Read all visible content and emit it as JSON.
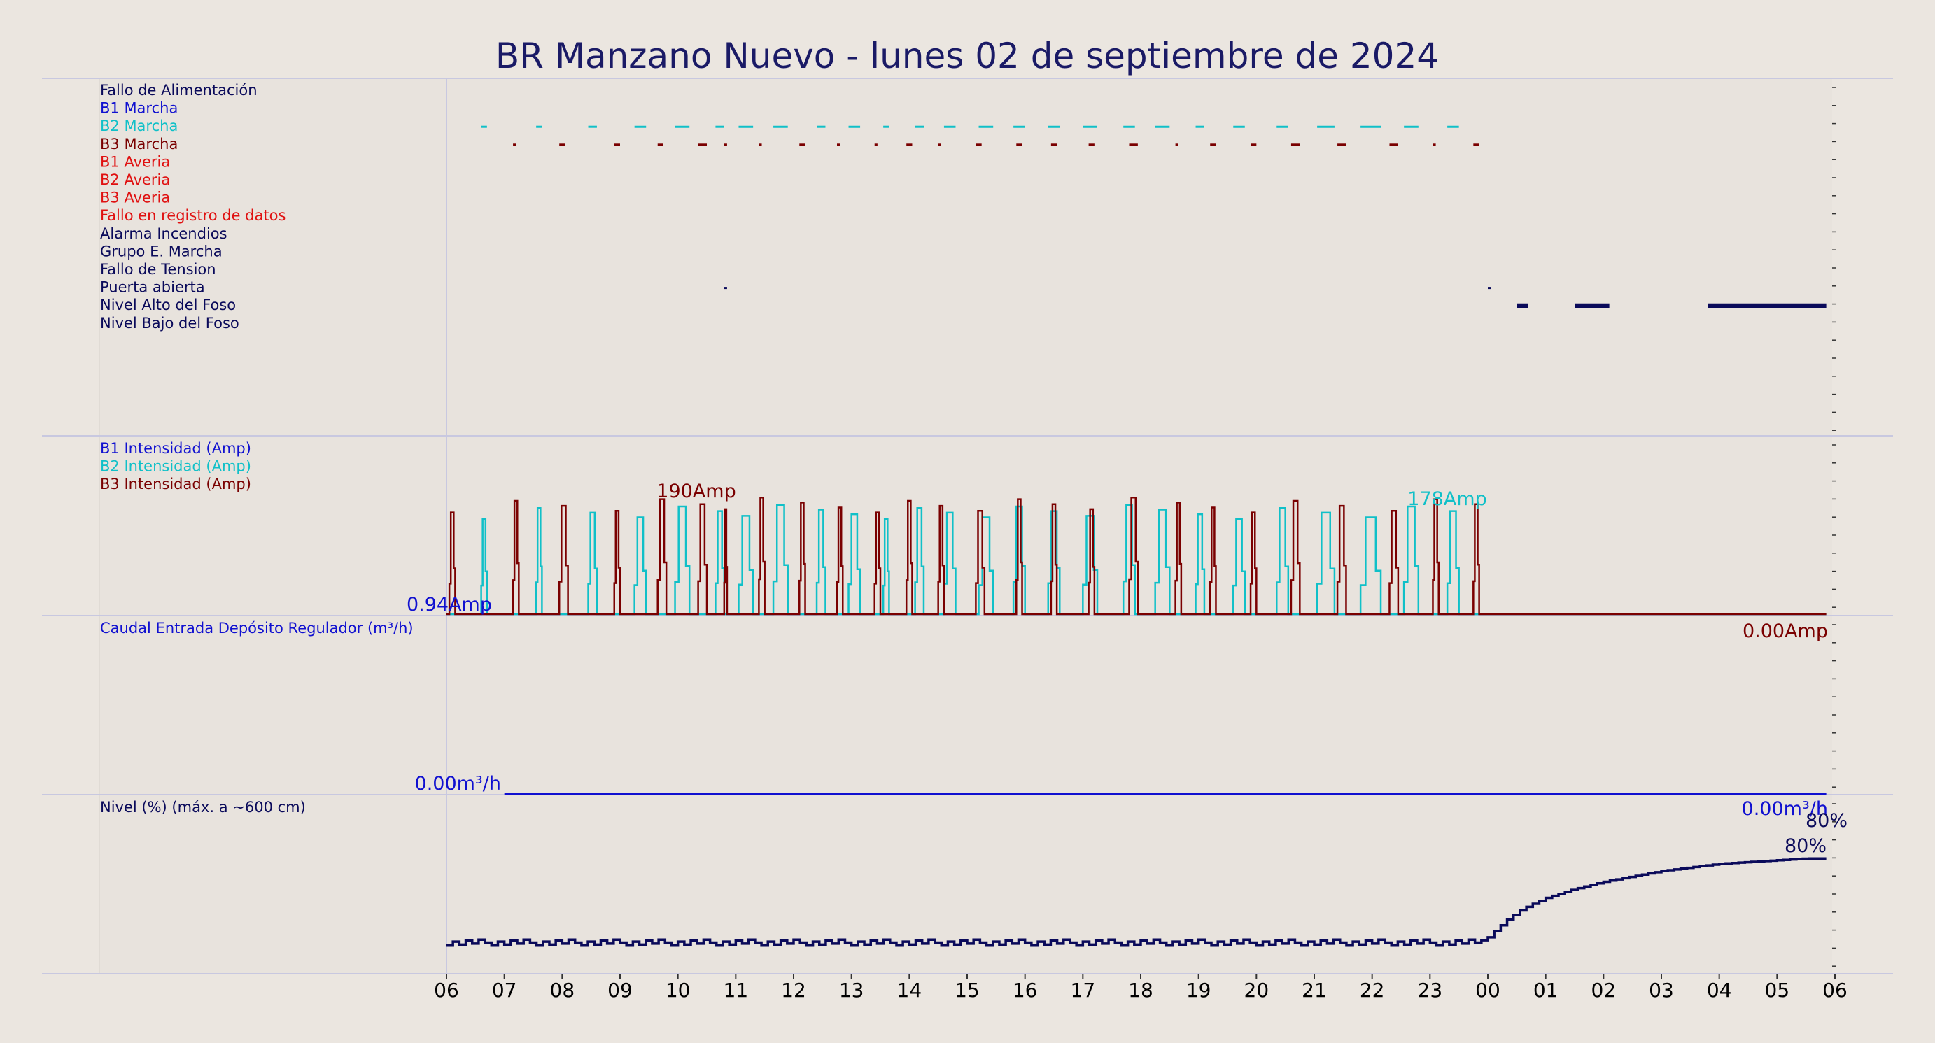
{
  "title": "BR Manzano Nuevo   -   lunes 02 de septiembre de 2024",
  "colors": {
    "background": "#ebe6e0",
    "navy": "#0a0a5a",
    "blue": "#1010d0",
    "cyan": "#10c0c8",
    "darkred": "#7a0000",
    "red": "#e01010"
  },
  "chart_data": [
    {
      "type": "line",
      "panel": "status",
      "x_axis": "hour of day (06 to 06 next day)",
      "series": [
        {
          "name": "Fallo de Alimentación",
          "color": "#0a0a5a",
          "segments": []
        },
        {
          "name": "B1 Marcha",
          "color": "#1010d0",
          "segments": []
        },
        {
          "name": "B2 Marcha",
          "color": "#10c0c8",
          "segments": [
            [
              6.6,
              6.7
            ],
            [
              7.55,
              7.65
            ],
            [
              8.45,
              8.6
            ],
            [
              9.25,
              9.45
            ],
            [
              9.95,
              10.2
            ],
            [
              10.65,
              10.8
            ],
            [
              11.05,
              11.3
            ],
            [
              11.65,
              11.9
            ],
            [
              12.4,
              12.55
            ],
            [
              12.95,
              13.15
            ],
            [
              13.55,
              13.65
            ],
            [
              14.1,
              14.25
            ],
            [
              14.6,
              14.8
            ],
            [
              15.2,
              15.45
            ],
            [
              15.8,
              16.0
            ],
            [
              16.4,
              16.6
            ],
            [
              17.0,
              17.25
            ],
            [
              17.7,
              17.9
            ],
            [
              18.25,
              18.5
            ],
            [
              18.95,
              19.1
            ],
            [
              19.6,
              19.8
            ],
            [
              20.35,
              20.55
            ],
            [
              21.05,
              21.35
            ],
            [
              21.8,
              22.15
            ],
            [
              22.55,
              22.8
            ],
            [
              23.3,
              23.5
            ]
          ]
        },
        {
          "name": "B3 Marcha",
          "color": "#7a0000",
          "segments": [
            [
              7.15,
              7.2
            ],
            [
              7.95,
              8.05
            ],
            [
              8.9,
              9.0
            ],
            [
              9.65,
              9.75
            ],
            [
              10.35,
              10.5
            ],
            [
              10.8,
              10.85
            ],
            [
              11.4,
              11.45
            ],
            [
              12.1,
              12.2
            ],
            [
              12.75,
              12.8
            ],
            [
              13.4,
              13.45
            ],
            [
              13.95,
              14.05
            ],
            [
              14.5,
              14.55
            ],
            [
              15.15,
              15.25
            ],
            [
              15.85,
              15.95
            ],
            [
              16.45,
              16.55
            ],
            [
              17.1,
              17.2
            ],
            [
              17.8,
              17.95
            ],
            [
              18.6,
              18.65
            ],
            [
              19.2,
              19.3
            ],
            [
              19.9,
              20.0
            ],
            [
              20.6,
              20.75
            ],
            [
              21.4,
              21.55
            ],
            [
              22.3,
              22.45
            ],
            [
              23.05,
              23.1
            ],
            [
              23.75,
              23.85
            ]
          ]
        },
        {
          "name": "B1 Averia",
          "color": "#e01010",
          "segments": []
        },
        {
          "name": "B2 Averia",
          "color": "#e01010",
          "segments": []
        },
        {
          "name": "B3 Averia",
          "color": "#e01010",
          "segments": []
        },
        {
          "name": "Fallo en registro de datos",
          "color": "#e01010",
          "segments": []
        },
        {
          "name": "Alarma Incendios",
          "color": "#0a0a5a",
          "segments": []
        },
        {
          "name": "Grupo E. Marcha",
          "color": "#0a0a5a",
          "segments": []
        },
        {
          "name": "Fallo de Tension",
          "color": "#0a0a5a",
          "segments": []
        },
        {
          "name": "Puerta abierta",
          "color": "#0a0a5a",
          "segments": [
            [
              10.8,
              10.85
            ],
            [
              24.0,
              24.03
            ]
          ]
        },
        {
          "name": "Nivel Alto del Foso",
          "color": "#0a0a5a",
          "segments": [
            [
              24.5,
              24.7
            ],
            [
              25.5,
              26.1
            ],
            [
              27.8,
              29.85
            ]
          ]
        },
        {
          "name": "Nivel Bajo del Foso",
          "color": "#0a0a5a",
          "segments": []
        }
      ]
    },
    {
      "type": "line",
      "panel": "current",
      "ylabel": "",
      "ylim": [
        0,
        200
      ],
      "series": [
        {
          "name": "B1 Intensidad (Amp)",
          "color": "#1010d0",
          "values": []
        },
        {
          "name": "B2 Intensidad (Amp)",
          "color": "#10c0c8",
          "runs": [
            [
              6.6,
              6.7
            ],
            [
              7.55,
              7.65
            ],
            [
              8.45,
              8.6
            ],
            [
              9.25,
              9.45
            ],
            [
              9.95,
              10.2
            ],
            [
              10.65,
              10.8
            ],
            [
              11.05,
              11.3
            ],
            [
              11.65,
              11.9
            ],
            [
              12.4,
              12.55
            ],
            [
              12.95,
              13.15
            ],
            [
              13.55,
              13.65
            ],
            [
              14.1,
              14.25
            ],
            [
              14.6,
              14.8
            ],
            [
              15.2,
              15.45
            ],
            [
              15.8,
              16.0
            ],
            [
              16.4,
              16.6
            ],
            [
              17.0,
              17.25
            ],
            [
              17.7,
              17.9
            ],
            [
              18.25,
              18.5
            ],
            [
              18.95,
              19.1
            ],
            [
              19.6,
              19.8
            ],
            [
              20.35,
              20.55
            ],
            [
              21.05,
              21.35
            ],
            [
              21.8,
              22.15
            ],
            [
              22.55,
              22.8
            ],
            [
              23.3,
              23.5
            ]
          ],
          "peak": 178
        },
        {
          "name": "B3 Intensidad (Amp)",
          "color": "#7a0000",
          "runs": [
            [
              6.05,
              6.15
            ],
            [
              7.15,
              7.25
            ],
            [
              7.95,
              8.1
            ],
            [
              8.9,
              9.0
            ],
            [
              9.65,
              9.8
            ],
            [
              10.35,
              10.5
            ],
            [
              10.8,
              10.85
            ],
            [
              11.4,
              11.5
            ],
            [
              12.1,
              12.2
            ],
            [
              12.75,
              12.85
            ],
            [
              13.4,
              13.5
            ],
            [
              13.95,
              14.05
            ],
            [
              14.5,
              14.6
            ],
            [
              15.15,
              15.3
            ],
            [
              15.85,
              15.95
            ],
            [
              16.45,
              16.55
            ],
            [
              17.1,
              17.2
            ],
            [
              17.8,
              17.95
            ],
            [
              18.6,
              18.7
            ],
            [
              19.2,
              19.3
            ],
            [
              19.9,
              20.0
            ],
            [
              20.6,
              20.75
            ],
            [
              21.4,
              21.55
            ],
            [
              22.3,
              22.45
            ],
            [
              23.05,
              23.15
            ],
            [
              23.75,
              23.85
            ]
          ],
          "peak": 190
        }
      ],
      "annotations": [
        {
          "text": "190Amp",
          "color": "#7a0000",
          "x": 10.4,
          "y": 190
        },
        {
          "text": "178Amp",
          "color": "#10c0c8",
          "x": 23.3,
          "y": 178
        },
        {
          "text": "0.94Amp",
          "color": "#1010d0",
          "x": 6.6,
          "y": 0.94
        },
        {
          "text": "0.00Amp",
          "color": "#7a0000",
          "x": 29.9,
          "y": 0
        }
      ]
    },
    {
      "type": "line",
      "panel": "flow",
      "series": [
        {
          "name": "Caudal Entrada Depósito Regulador (m³/h)",
          "color": "#1010d0",
          "x": [
            7.0,
            29.85
          ],
          "y": [
            0,
            0
          ]
        }
      ],
      "annotations": [
        {
          "text": "0.00m³/h",
          "color": "#1010d0",
          "x": 6.1,
          "y": 0
        },
        {
          "text": "0.00m³/h",
          "color": "#1010d0",
          "x": 29.9,
          "y": 0
        }
      ]
    },
    {
      "type": "line",
      "panel": "level",
      "ylim": [
        0,
        100
      ],
      "series": [
        {
          "name": "Nivel (%) (máx. a ~600 cm)",
          "color": "#0a0a5a",
          "x": [
            6,
            23.8,
            24.0,
            24.3,
            24.6,
            25.0,
            25.5,
            26.0,
            26.5,
            27.0,
            27.5,
            28.0,
            28.5,
            29.0,
            29.5,
            29.85
          ],
          "y": [
            33,
            33,
            36,
            45,
            52,
            58,
            63,
            67,
            70,
            73,
            75,
            77,
            78,
            79,
            80,
            80
          ]
        }
      ],
      "annotations": [
        {
          "text": "80%",
          "color": "#0a0a5a",
          "x": 29.9,
          "y": 80
        },
        {
          "text": "80%",
          "color": "#0a0a5a",
          "x": 29.6,
          "y": 70
        }
      ]
    }
  ],
  "x_ticks": [
    "06",
    "07",
    "08",
    "09",
    "10",
    "11",
    "12",
    "13",
    "14",
    "15",
    "16",
    "17",
    "18",
    "19",
    "20",
    "21",
    "22",
    "23",
    "00",
    "01",
    "02",
    "03",
    "04",
    "05",
    "06"
  ]
}
